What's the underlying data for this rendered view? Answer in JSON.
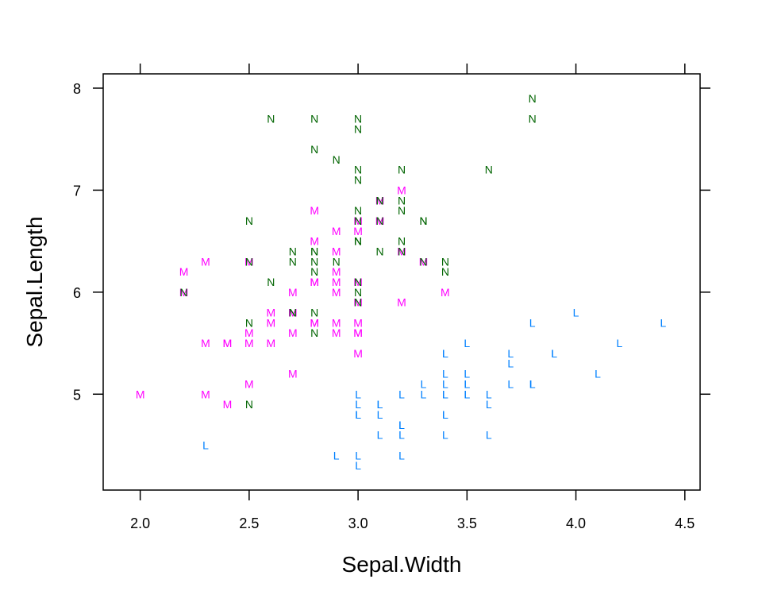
{
  "chart_data": {
    "type": "scatter",
    "xlabel": "Sepal.Width",
    "ylabel": "Sepal.Length",
    "xlim": [
      1.83,
      4.57
    ],
    "ylim": [
      4.06,
      8.14
    ],
    "x_ticks": [
      "2.0",
      "2.5",
      "3.0",
      "3.5",
      "4.0",
      "4.5"
    ],
    "y_ticks": [
      "5",
      "6",
      "7",
      "8"
    ],
    "grid": false,
    "legend": "none",
    "series": [
      {
        "marker": "L",
        "color": "#0080ff",
        "points": [
          [
            3.5,
            5.1
          ],
          [
            3.0,
            4.9
          ],
          [
            3.2,
            4.7
          ],
          [
            3.1,
            4.6
          ],
          [
            3.6,
            5.0
          ],
          [
            3.9,
            5.4
          ],
          [
            3.4,
            4.6
          ],
          [
            3.4,
            5.0
          ],
          [
            2.9,
            4.4
          ],
          [
            3.1,
            4.9
          ],
          [
            3.7,
            5.4
          ],
          [
            3.4,
            4.8
          ],
          [
            3.0,
            4.8
          ],
          [
            3.0,
            4.3
          ],
          [
            4.0,
            5.8
          ],
          [
            4.4,
            5.7
          ],
          [
            3.9,
            5.4
          ],
          [
            3.5,
            5.1
          ],
          [
            3.8,
            5.7
          ],
          [
            3.8,
            5.1
          ],
          [
            3.4,
            5.4
          ],
          [
            3.7,
            5.1
          ],
          [
            3.6,
            4.6
          ],
          [
            3.3,
            5.1
          ],
          [
            3.4,
            4.8
          ],
          [
            3.0,
            5.0
          ],
          [
            3.4,
            5.0
          ],
          [
            3.5,
            5.2
          ],
          [
            3.4,
            5.2
          ],
          [
            3.2,
            4.7
          ],
          [
            3.1,
            4.8
          ],
          [
            3.4,
            5.4
          ],
          [
            4.1,
            5.2
          ],
          [
            4.2,
            5.5
          ],
          [
            3.1,
            4.9
          ],
          [
            3.2,
            5.0
          ],
          [
            3.5,
            5.5
          ],
          [
            3.6,
            4.9
          ],
          [
            3.0,
            4.4
          ],
          [
            3.4,
            5.1
          ],
          [
            3.5,
            5.0
          ],
          [
            2.3,
            4.5
          ],
          [
            3.2,
            4.4
          ],
          [
            3.5,
            5.0
          ],
          [
            3.8,
            5.1
          ],
          [
            3.0,
            4.8
          ],
          [
            3.8,
            5.1
          ],
          [
            3.2,
            4.6
          ],
          [
            3.7,
            5.3
          ],
          [
            3.3,
            5.0
          ]
        ]
      },
      {
        "marker": "M",
        "color": "#ff00ff",
        "points": [
          [
            3.2,
            7.0
          ],
          [
            3.2,
            6.4
          ],
          [
            3.1,
            6.9
          ],
          [
            2.3,
            5.5
          ],
          [
            2.8,
            6.5
          ],
          [
            2.8,
            5.7
          ],
          [
            3.3,
            6.3
          ],
          [
            2.4,
            4.9
          ],
          [
            2.9,
            6.6
          ],
          [
            2.7,
            5.2
          ],
          [
            2.0,
            5.0
          ],
          [
            3.0,
            5.9
          ],
          [
            2.2,
            6.0
          ],
          [
            2.9,
            6.1
          ],
          [
            2.9,
            5.6
          ],
          [
            3.1,
            6.7
          ],
          [
            3.0,
            5.6
          ],
          [
            2.7,
            5.8
          ],
          [
            2.2,
            6.2
          ],
          [
            2.5,
            5.6
          ],
          [
            3.2,
            5.9
          ],
          [
            2.8,
            6.1
          ],
          [
            2.5,
            6.3
          ],
          [
            2.8,
            6.1
          ],
          [
            2.9,
            6.4
          ],
          [
            3.0,
            6.6
          ],
          [
            2.8,
            6.8
          ],
          [
            3.0,
            6.7
          ],
          [
            2.9,
            6.0
          ],
          [
            2.6,
            5.7
          ],
          [
            2.4,
            5.5
          ],
          [
            2.4,
            5.5
          ],
          [
            2.7,
            5.8
          ],
          [
            2.7,
            6.0
          ],
          [
            3.0,
            5.4
          ],
          [
            3.4,
            6.0
          ],
          [
            3.1,
            6.7
          ],
          [
            2.3,
            6.3
          ],
          [
            3.0,
            5.6
          ],
          [
            2.5,
            5.5
          ],
          [
            2.6,
            5.5
          ],
          [
            3.0,
            6.1
          ],
          [
            2.6,
            5.8
          ],
          [
            2.3,
            5.0
          ],
          [
            2.7,
            5.6
          ],
          [
            3.0,
            5.7
          ],
          [
            2.9,
            5.7
          ],
          [
            2.9,
            6.2
          ],
          [
            2.5,
            5.1
          ],
          [
            2.8,
            5.7
          ]
        ]
      },
      {
        "marker": "N",
        "color": "#006400",
        "points": [
          [
            3.3,
            6.3
          ],
          [
            2.7,
            5.8
          ],
          [
            3.0,
            7.1
          ],
          [
            2.9,
            6.3
          ],
          [
            3.0,
            6.5
          ],
          [
            3.0,
            7.6
          ],
          [
            2.5,
            4.9
          ],
          [
            2.9,
            7.3
          ],
          [
            2.5,
            6.7
          ],
          [
            3.6,
            7.2
          ],
          [
            3.2,
            6.5
          ],
          [
            2.7,
            6.4
          ],
          [
            3.0,
            6.8
          ],
          [
            2.5,
            5.7
          ],
          [
            2.8,
            5.8
          ],
          [
            3.2,
            6.4
          ],
          [
            3.0,
            6.5
          ],
          [
            3.8,
            7.7
          ],
          [
            2.6,
            7.7
          ],
          [
            2.2,
            6.0
          ],
          [
            3.2,
            6.9
          ],
          [
            2.8,
            5.6
          ],
          [
            2.8,
            7.7
          ],
          [
            2.7,
            6.3
          ],
          [
            3.3,
            6.7
          ],
          [
            3.2,
            7.2
          ],
          [
            2.8,
            6.2
          ],
          [
            3.0,
            6.1
          ],
          [
            2.8,
            6.4
          ],
          [
            3.0,
            7.2
          ],
          [
            2.8,
            7.4
          ],
          [
            3.8,
            7.9
          ],
          [
            2.8,
            6.4
          ],
          [
            2.8,
            6.3
          ],
          [
            2.6,
            6.1
          ],
          [
            3.0,
            7.7
          ],
          [
            3.4,
            6.3
          ],
          [
            3.1,
            6.4
          ],
          [
            3.0,
            6.0
          ],
          [
            3.1,
            6.9
          ],
          [
            3.1,
            6.7
          ],
          [
            3.1,
            6.9
          ],
          [
            2.7,
            5.8
          ],
          [
            3.2,
            6.8
          ],
          [
            3.3,
            6.7
          ],
          [
            3.0,
            6.7
          ],
          [
            2.5,
            6.3
          ],
          [
            3.0,
            6.5
          ],
          [
            3.4,
            6.2
          ],
          [
            3.0,
            5.9
          ]
        ]
      }
    ]
  }
}
